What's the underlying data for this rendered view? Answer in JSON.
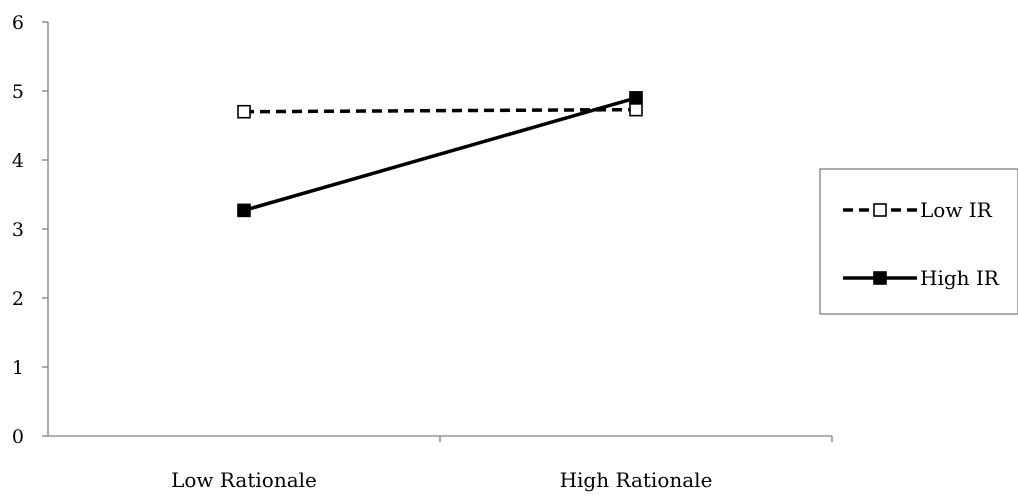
{
  "chart_data": {
    "type": "line",
    "title": "",
    "xlabel": "",
    "ylabel": "",
    "categories": [
      "Low Rationale",
      "High Rationale"
    ],
    "ylim": [
      0,
      6
    ],
    "yticks": [
      0,
      1,
      2,
      3,
      4,
      5,
      6
    ],
    "grid": false,
    "legend_position": "right",
    "series": [
      {
        "name": "Low IR",
        "values": [
          4.7,
          4.73
        ],
        "line_style": "dashed",
        "marker": "open-square",
        "color": "#000000"
      },
      {
        "name": "High IR",
        "values": [
          3.27,
          4.9
        ],
        "line_style": "solid",
        "marker": "filled-square",
        "color": "#000000"
      }
    ]
  }
}
